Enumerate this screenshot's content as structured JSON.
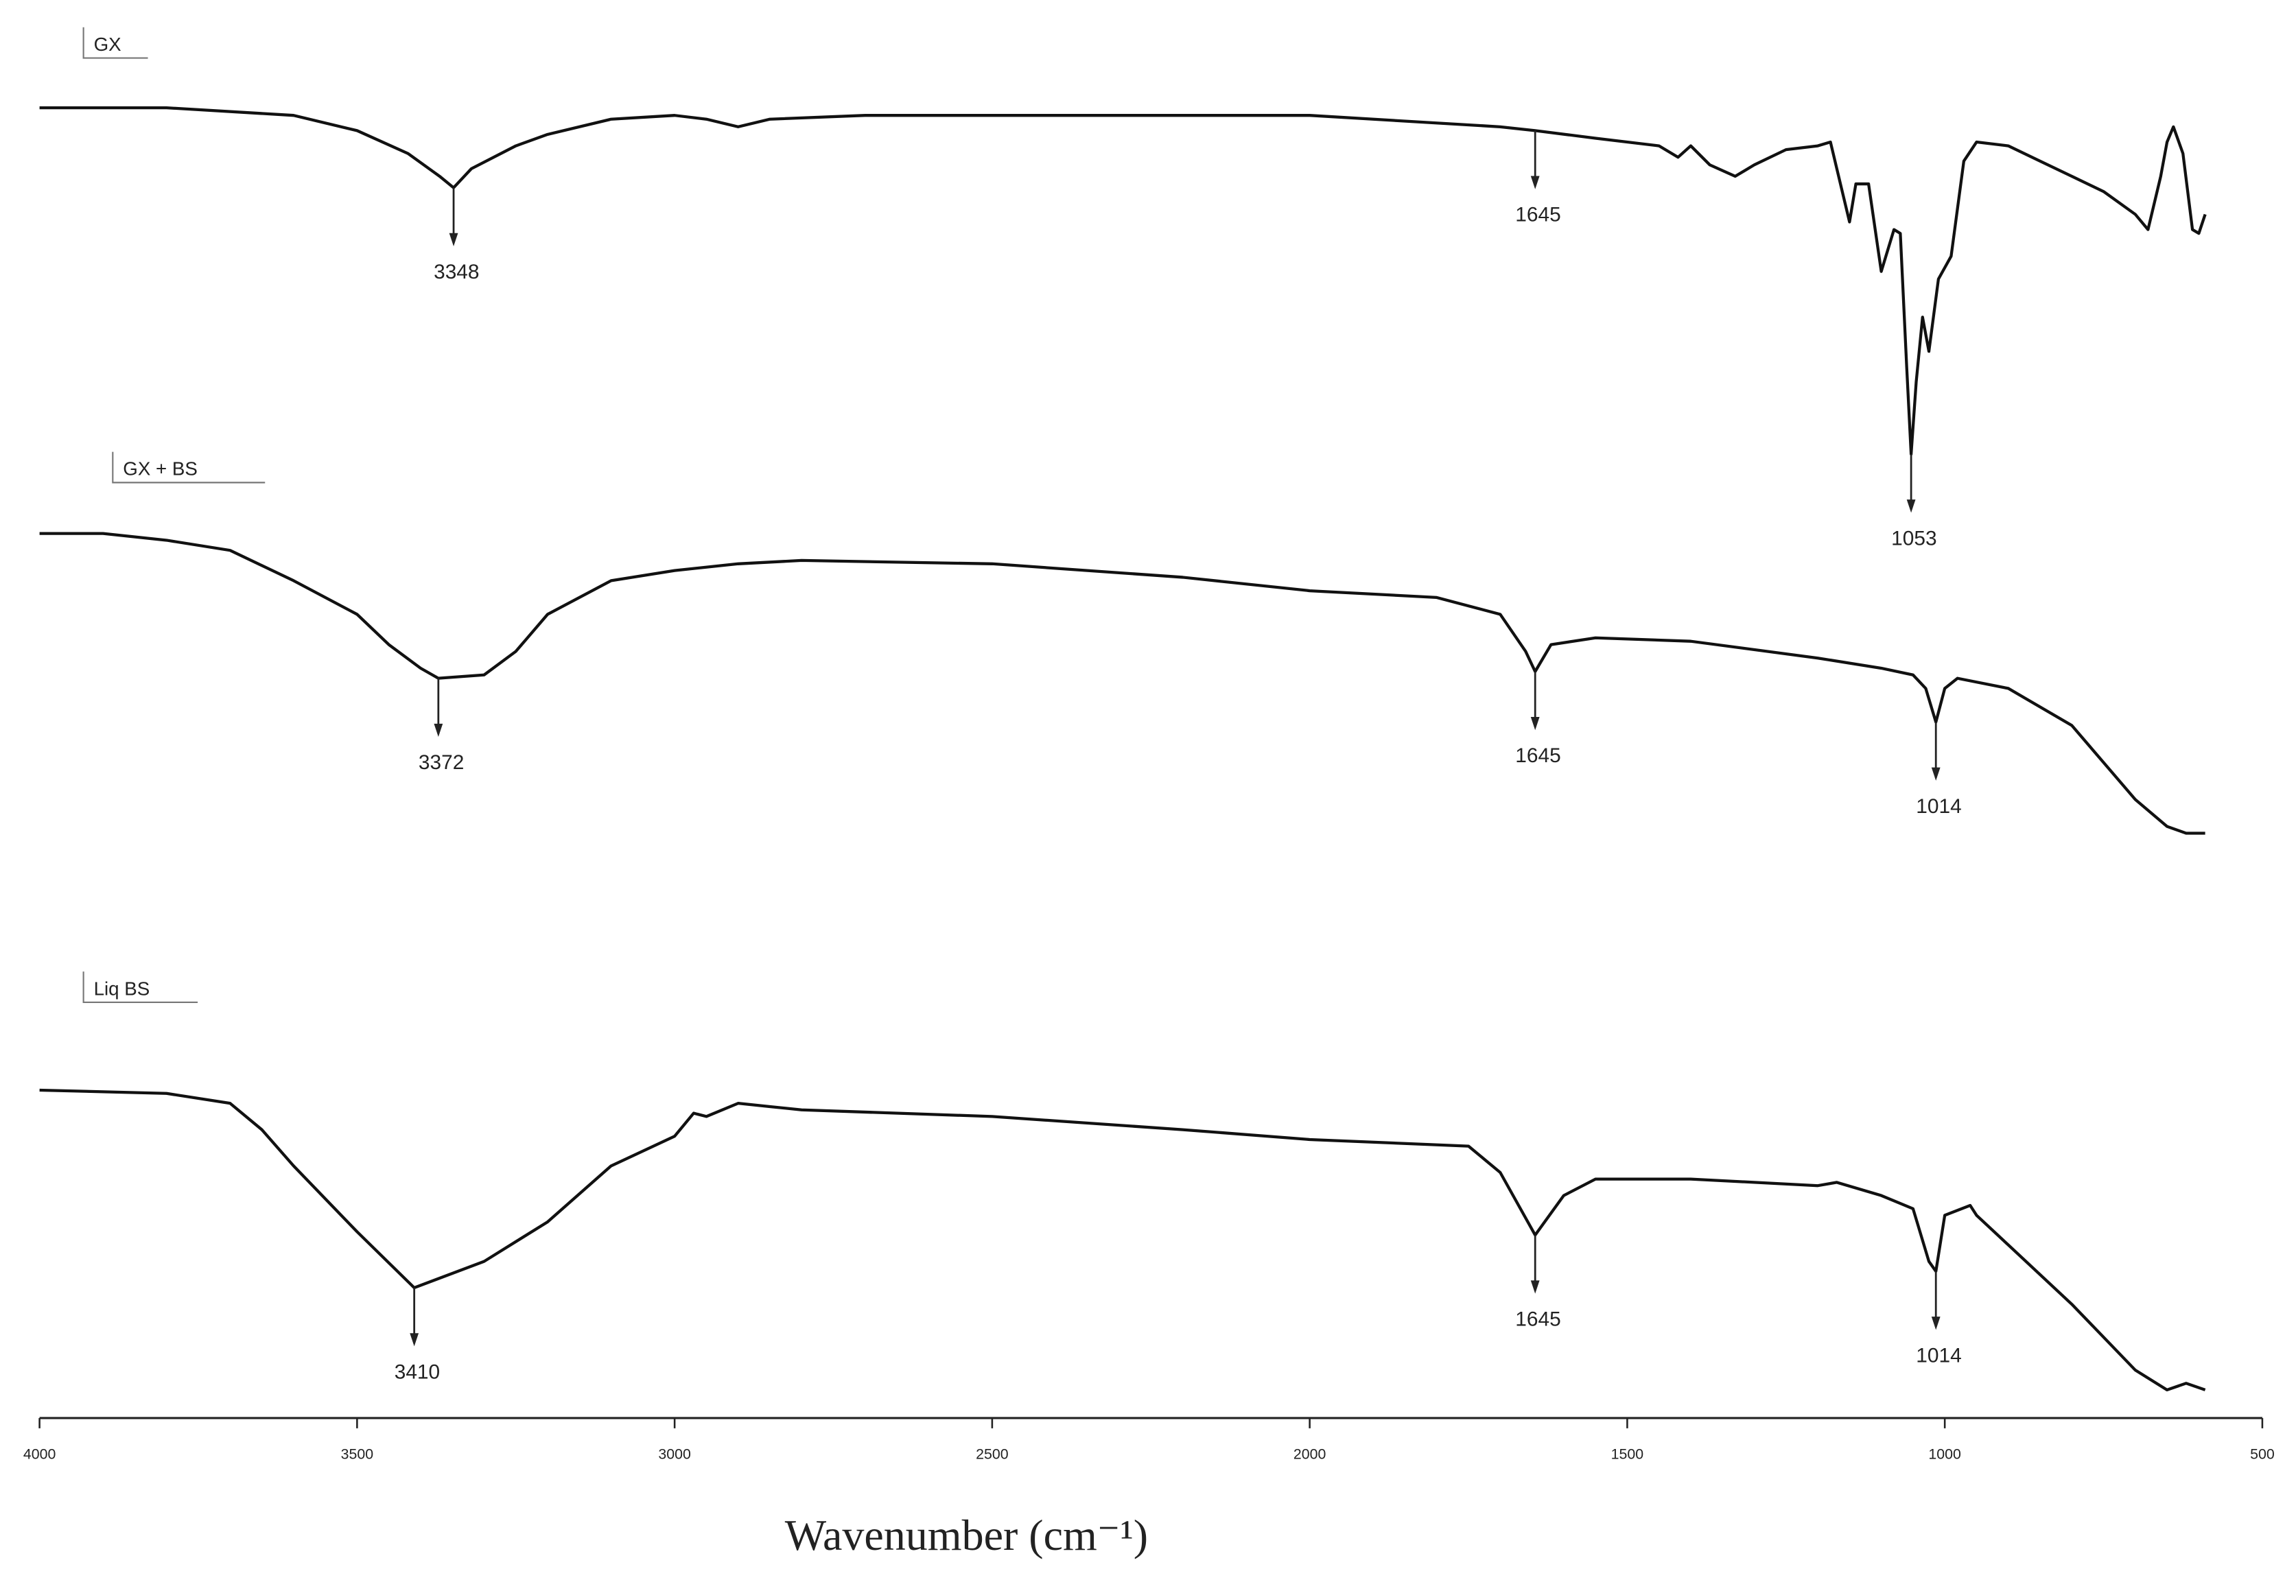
{
  "chart_data": {
    "type": "line",
    "xlabel": "Wavenumber (cm⁻¹)",
    "xlim": [
      4000,
      500
    ],
    "xticks": [
      4000,
      3500,
      3000,
      2500,
      2000,
      1500,
      1000,
      500
    ],
    "ylim": [
      0,
      100
    ],
    "series": [
      {
        "name": "GX",
        "color": "#111111",
        "x": [
          4000,
          3800,
          3600,
          3500,
          3420,
          3370,
          3348,
          3320,
          3250,
          3200,
          3100,
          3000,
          2950,
          2900,
          2850,
          2700,
          2500,
          2000,
          1700,
          1645,
          1550,
          1450,
          1420,
          1400,
          1370,
          1330,
          1300,
          1250,
          1200,
          1180,
          1170,
          1150,
          1140,
          1120,
          1100,
          1080,
          1070,
          1060,
          1053,
          1045,
          1035,
          1025,
          1010,
          990,
          970,
          950,
          900,
          850,
          800,
          750,
          700,
          680,
          660,
          650,
          640,
          625,
          610,
          600,
          590
        ],
        "values": [
          95,
          95,
          93,
          89,
          83,
          77,
          74,
          79,
          85,
          88,
          92,
          93,
          92,
          90,
          92,
          93,
          93,
          93,
          90,
          89,
          87,
          85,
          82,
          85,
          80,
          77,
          80,
          84,
          85,
          86,
          79,
          65,
          75,
          75,
          52,
          63,
          62,
          27,
          4,
          23,
          40,
          31,
          50,
          56,
          81,
          86,
          85,
          81,
          77,
          73,
          67,
          63,
          77,
          86,
          90,
          83,
          63,
          62,
          67
        ],
        "peaks": [
          3348,
          1645,
          1053
        ]
      },
      {
        "name": "GX + BS",
        "color": "#111111",
        "x": [
          4000,
          3900,
          3800,
          3700,
          3600,
          3500,
          3450,
          3400,
          3372,
          3300,
          3250,
          3200,
          3100,
          3000,
          2900,
          2800,
          2500,
          2200,
          2000,
          1800,
          1700,
          1660,
          1645,
          1620,
          1550,
          1400,
          1200,
          1100,
          1050,
          1030,
          1014,
          1000,
          980,
          900,
          800,
          750,
          700,
          650,
          620,
          590
        ],
        "values": [
          94,
          94,
          92,
          89,
          80,
          70,
          61,
          54,
          51,
          52,
          59,
          70,
          80,
          83,
          85,
          86,
          85,
          81,
          77,
          75,
          70,
          59,
          53,
          61,
          63,
          62,
          57,
          54,
          52,
          48,
          38,
          48,
          51,
          48,
          37,
          26,
          15,
          7,
          5,
          5
        ],
        "peaks": [
          3372,
          1645,
          1014
        ]
      },
      {
        "name": "Liq BS",
        "color": "#111111",
        "x": [
          4000,
          3800,
          3700,
          3650,
          3600,
          3500,
          3410,
          3300,
          3200,
          3100,
          3000,
          2970,
          2950,
          2900,
          2850,
          2800,
          2500,
          2200,
          2000,
          1750,
          1700,
          1645,
          1600,
          1550,
          1400,
          1200,
          1170,
          1100,
          1050,
          1025,
          1014,
          1000,
          960,
          950,
          900,
          800,
          700,
          650,
          620,
          590
        ],
        "values": [
          96,
          95,
          92,
          84,
          73,
          53,
          36,
          44,
          56,
          73,
          82,
          89,
          88,
          92,
          91,
          90,
          88,
          84,
          81,
          79,
          71,
          52,
          64,
          69,
          69,
          67,
          68,
          64,
          60,
          44,
          41,
          58,
          61,
          58,
          49,
          31,
          11,
          5,
          7,
          5
        ],
        "peaks": [
          3410,
          1645,
          1014
        ]
      }
    ]
  }
}
